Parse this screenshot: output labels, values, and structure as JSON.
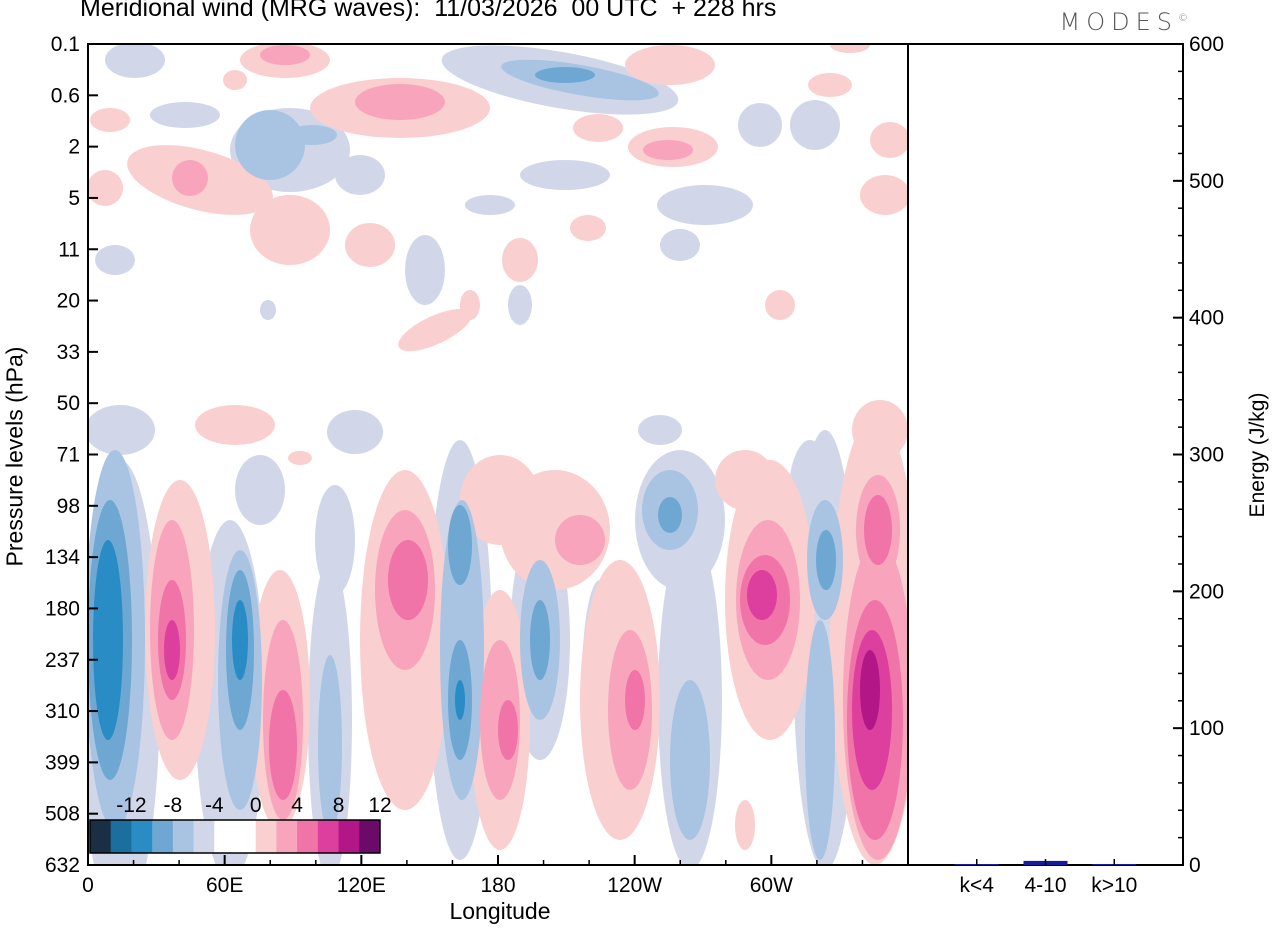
{
  "title": "Meridional wind (MRG waves):  11/03/2026  00 UTC  + 228 hrs",
  "logo": "MODES",
  "logo_mark": "©",
  "chart_data": [
    {
      "type": "heatmap",
      "title": "Meridional wind (MRG waves)",
      "date": "11/03/2026",
      "time": "00 UTC",
      "lead": "+ 228 hrs",
      "xlabel": "Longitude",
      "ylabel": "Pressure levels (hPa)",
      "x_ticks": [
        "0",
        "60E",
        "120E",
        "180",
        "120W",
        "60W"
      ],
      "y_ticks": [
        "0.1",
        "0.6",
        "2",
        "5",
        "11",
        "20",
        "33",
        "50",
        "71",
        "98",
        "134",
        "180",
        "237",
        "310",
        "399",
        "508",
        "632"
      ],
      "colorbar": {
        "levels": [
          -12,
          -8,
          -4,
          0,
          4,
          8,
          12
        ],
        "labels": [
          "-12",
          "-8",
          "-4",
          "0",
          "4",
          "8",
          "12"
        ],
        "colors": [
          "#1a2f44",
          "#1a6f9f",
          "#2a8cc4",
          "#6fa7d3",
          "#a9c4e2",
          "#d1d7e9",
          "#ffffff",
          "#ffffff",
          "#f9cfd0",
          "#f8a4bc",
          "#f074a8",
          "#dc3f9d",
          "#b31686",
          "#6c0a6a"
        ]
      }
    },
    {
      "type": "bar",
      "ylabel": "Energy (J/kg)",
      "ylim": [
        0,
        600
      ],
      "y_ticks": [
        "0",
        "100",
        "200",
        "300",
        "400",
        "500",
        "600"
      ],
      "categories": [
        "k<4",
        "4-10",
        "k>10"
      ],
      "values": [
        0.5,
        3,
        0.5
      ],
      "color": "#1a1a9c"
    }
  ]
}
